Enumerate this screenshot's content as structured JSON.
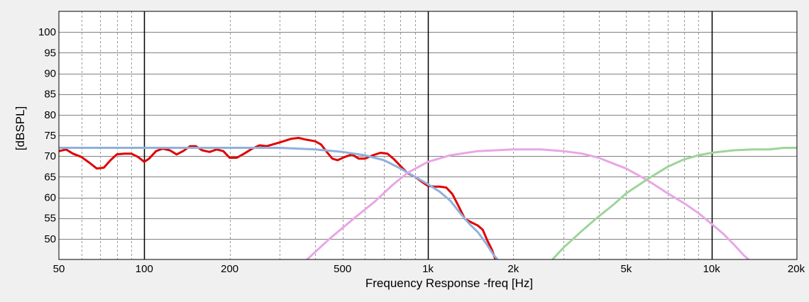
{
  "chart_data": {
    "type": "line",
    "title": "",
    "xlabel": "Frequency Response -freq [Hz]",
    "ylabel": "[dBSPL]",
    "x_scale": "log",
    "xlim": [
      50,
      20000
    ],
    "ylim": [
      45,
      105
    ],
    "x_ticks": [
      {
        "value": 50,
        "label": "50"
      },
      {
        "value": 100,
        "label": "100"
      },
      {
        "value": 200,
        "label": "200"
      },
      {
        "value": 500,
        "label": "500"
      },
      {
        "value": 1000,
        "label": "1k"
      },
      {
        "value": 2000,
        "label": "2k"
      },
      {
        "value": 5000,
        "label": "5k"
      },
      {
        "value": 10000,
        "label": "10k"
      },
      {
        "value": 20000,
        "label": "20k"
      }
    ],
    "y_ticks": [
      50,
      55,
      60,
      65,
      70,
      75,
      80,
      85,
      90,
      95,
      100
    ],
    "grid": true,
    "major_grid_x": [
      100,
      1000,
      10000
    ],
    "minor_grid_x": [
      60,
      70,
      80,
      90,
      200,
      300,
      400,
      500,
      600,
      700,
      800,
      900,
      2000,
      3000,
      4000,
      5000,
      6000,
      7000,
      8000,
      9000
    ],
    "colors": {
      "background": "#f0f0f0",
      "plot_bg": "#ffffff",
      "grid_major": "#000000",
      "grid_minor": "#999999",
      "grid_h": "#808080"
    },
    "series": [
      {
        "color": "#e00000",
        "width": 3,
        "points": [
          [
            50,
            71.2
          ],
          [
            53,
            71.6
          ],
          [
            56,
            70.6
          ],
          [
            60,
            69.8
          ],
          [
            64,
            68.4
          ],
          [
            68,
            67.0
          ],
          [
            72,
            67.2
          ],
          [
            76,
            69.0
          ],
          [
            80,
            70.4
          ],
          [
            85,
            70.6
          ],
          [
            90,
            70.6
          ],
          [
            95,
            69.8
          ],
          [
            100,
            68.6
          ],
          [
            104,
            69.4
          ],
          [
            110,
            71.2
          ],
          [
            116,
            71.8
          ],
          [
            123,
            71.4
          ],
          [
            130,
            70.4
          ],
          [
            137,
            71.2
          ],
          [
            145,
            72.4
          ],
          [
            152,
            72.4
          ],
          [
            160,
            71.4
          ],
          [
            170,
            71.0
          ],
          [
            180,
            71.6
          ],
          [
            190,
            71.2
          ],
          [
            200,
            69.6
          ],
          [
            212,
            69.6
          ],
          [
            225,
            70.6
          ],
          [
            240,
            71.8
          ],
          [
            255,
            72.6
          ],
          [
            270,
            72.4
          ],
          [
            290,
            73.0
          ],
          [
            310,
            73.6
          ],
          [
            330,
            74.2
          ],
          [
            350,
            74.4
          ],
          [
            370,
            74.0
          ],
          [
            400,
            73.6
          ],
          [
            420,
            72.8
          ],
          [
            440,
            71.0
          ],
          [
            460,
            69.4
          ],
          [
            480,
            69.0
          ],
          [
            510,
            69.8
          ],
          [
            540,
            70.4
          ],
          [
            570,
            69.4
          ],
          [
            600,
            69.4
          ],
          [
            640,
            70.2
          ],
          [
            680,
            70.8
          ],
          [
            720,
            70.6
          ],
          [
            760,
            69.2
          ],
          [
            800,
            67.6
          ],
          [
            850,
            65.8
          ],
          [
            900,
            65.0
          ],
          [
            950,
            63.8
          ],
          [
            1000,
            62.8
          ],
          [
            1050,
            62.6
          ],
          [
            1100,
            62.6
          ],
          [
            1160,
            62.4
          ],
          [
            1220,
            60.8
          ],
          [
            1280,
            58.0
          ],
          [
            1350,
            54.8
          ],
          [
            1420,
            54.0
          ],
          [
            1500,
            53.2
          ],
          [
            1560,
            52.2
          ],
          [
            1620,
            49.6
          ],
          [
            1680,
            47.4
          ],
          [
            1730,
            45.0
          ]
        ]
      },
      {
        "color": "#8fb0dc",
        "width": 3,
        "points": [
          [
            50,
            72.0
          ],
          [
            100,
            72.0
          ],
          [
            150,
            72.0
          ],
          [
            200,
            72.0
          ],
          [
            300,
            72.0
          ],
          [
            400,
            71.6
          ],
          [
            500,
            71.0
          ],
          [
            600,
            70.2
          ],
          [
            700,
            69.0
          ],
          [
            800,
            67.0
          ],
          [
            900,
            65.0
          ],
          [
            1000,
            63.2
          ],
          [
            1100,
            61.4
          ],
          [
            1200,
            59.2
          ],
          [
            1300,
            56.2
          ],
          [
            1400,
            53.6
          ],
          [
            1500,
            51.6
          ],
          [
            1600,
            49.0
          ],
          [
            1700,
            46.2
          ],
          [
            1760,
            45.0
          ]
        ]
      },
      {
        "color": "#e8a6e6",
        "width": 3,
        "points": [
          [
            375,
            45.0
          ],
          [
            450,
            50.0
          ],
          [
            550,
            55.0
          ],
          [
            650,
            59.0
          ],
          [
            750,
            63.0
          ],
          [
            850,
            66.0
          ],
          [
            1000,
            68.6
          ],
          [
            1200,
            70.2
          ],
          [
            1500,
            71.2
          ],
          [
            2000,
            71.6
          ],
          [
            2500,
            71.6
          ],
          [
            3000,
            71.2
          ],
          [
            3500,
            70.6
          ],
          [
            4000,
            69.6
          ],
          [
            4500,
            68.2
          ],
          [
            5000,
            67.0
          ],
          [
            6000,
            64.0
          ],
          [
            7000,
            61.0
          ],
          [
            8000,
            58.6
          ],
          [
            9000,
            56.2
          ],
          [
            10000,
            53.6
          ],
          [
            11000,
            51.2
          ],
          [
            12000,
            48.6
          ],
          [
            13000,
            46.0
          ],
          [
            13500,
            45.0
          ]
        ]
      },
      {
        "color": "#9ed49a",
        "width": 3,
        "points": [
          [
            2750,
            45.0
          ],
          [
            3000,
            47.8
          ],
          [
            3500,
            52.0
          ],
          [
            4000,
            55.4
          ],
          [
            4500,
            58.2
          ],
          [
            5000,
            61.0
          ],
          [
            6000,
            64.6
          ],
          [
            7000,
            67.4
          ],
          [
            8000,
            69.2
          ],
          [
            9000,
            70.2
          ],
          [
            10000,
            70.8
          ],
          [
            12000,
            71.4
          ],
          [
            14000,
            71.6
          ],
          [
            16000,
            71.6
          ],
          [
            18000,
            72.0
          ],
          [
            20000,
            72.0
          ]
        ]
      }
    ]
  }
}
